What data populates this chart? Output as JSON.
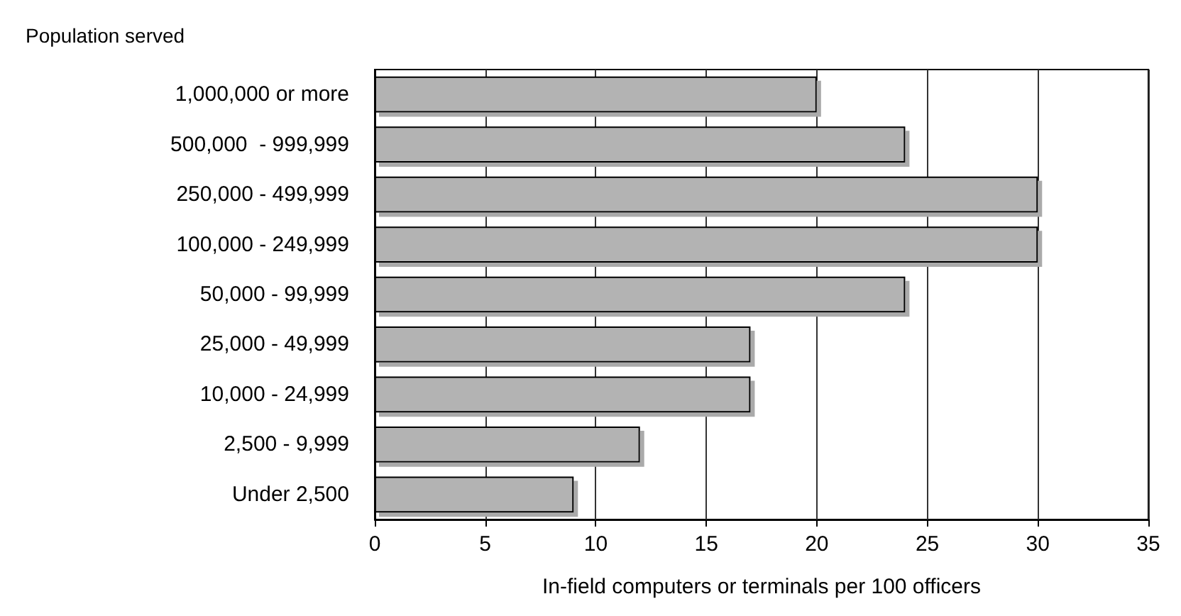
{
  "chart_data": {
    "type": "bar",
    "orientation": "horizontal",
    "ylabel": "Population served",
    "xlabel": "In-field computers or terminals per 100 officers",
    "categories": [
      "1,000,000 or more",
      "500,000  - 999,999",
      "250,000 - 499,999",
      "100,000 - 249,999",
      "50,000 - 99,999",
      "25,000 - 49,999",
      "10,000 - 24,999",
      "2,500 - 9,999",
      "Under 2,500"
    ],
    "values": [
      20,
      24,
      30,
      30,
      24,
      17,
      17,
      12,
      9
    ],
    "color": "#b3b3b3",
    "xlim": [
      0,
      35
    ],
    "xticks": [
      0,
      5,
      10,
      15,
      20,
      25,
      30,
      35
    ],
    "grid": "x"
  }
}
